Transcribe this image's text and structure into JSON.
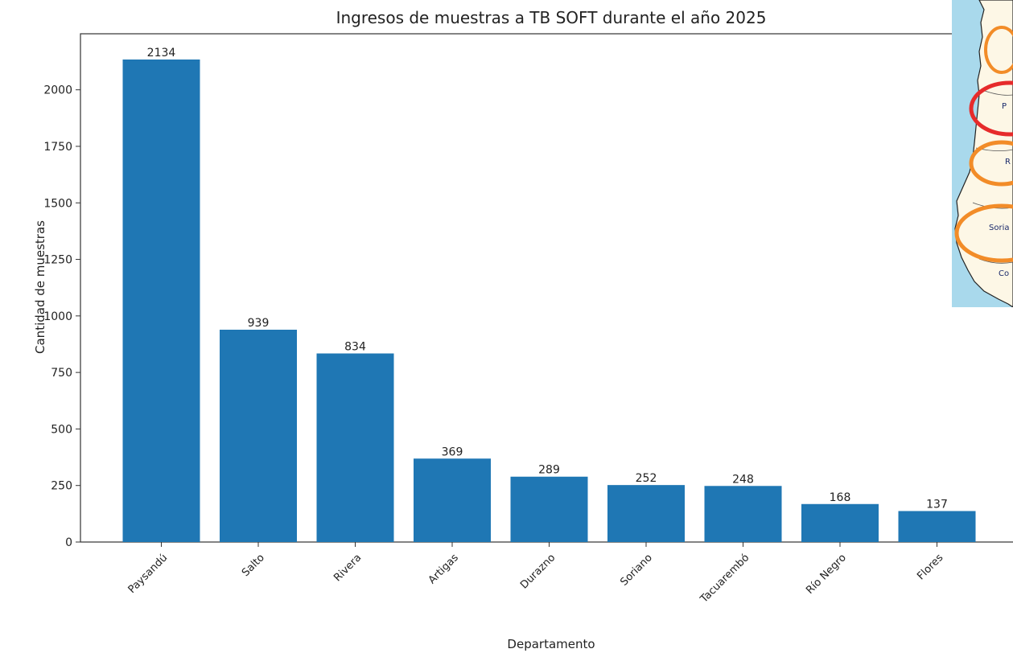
{
  "chart_data": {
    "type": "bar",
    "title": "Ingresos de muestras a TB SOFT durante el año 2025",
    "xlabel": "Departamento",
    "ylabel": "Cantidad de muestras",
    "categories": [
      "Paysandú",
      "Salto",
      "Rivera",
      "Artigas",
      "Durazno",
      "Soriano",
      "Tacuarembó",
      "Río Negro",
      "Flores"
    ],
    "values": [
      2134,
      939,
      834,
      369,
      289,
      252,
      248,
      168,
      137
    ],
    "data_labels": [
      "2134",
      "939",
      "834",
      "369",
      "289",
      "252",
      "248",
      "168",
      "137"
    ],
    "yticks": [
      0,
      250,
      500,
      750,
      1000,
      1250,
      1500,
      1750,
      2000
    ],
    "ylim": [
      0,
      2240
    ],
    "grid": false,
    "bar_color": "#1f77b4"
  },
  "map_inset": {
    "labels": [
      "P",
      "R",
      "Soria",
      "Co"
    ],
    "colors": {
      "water": "#a9d9ec",
      "land": "#fdf7e6",
      "highlight_red": "#e62b2b",
      "highlight_orange": "#f28c28"
    }
  }
}
